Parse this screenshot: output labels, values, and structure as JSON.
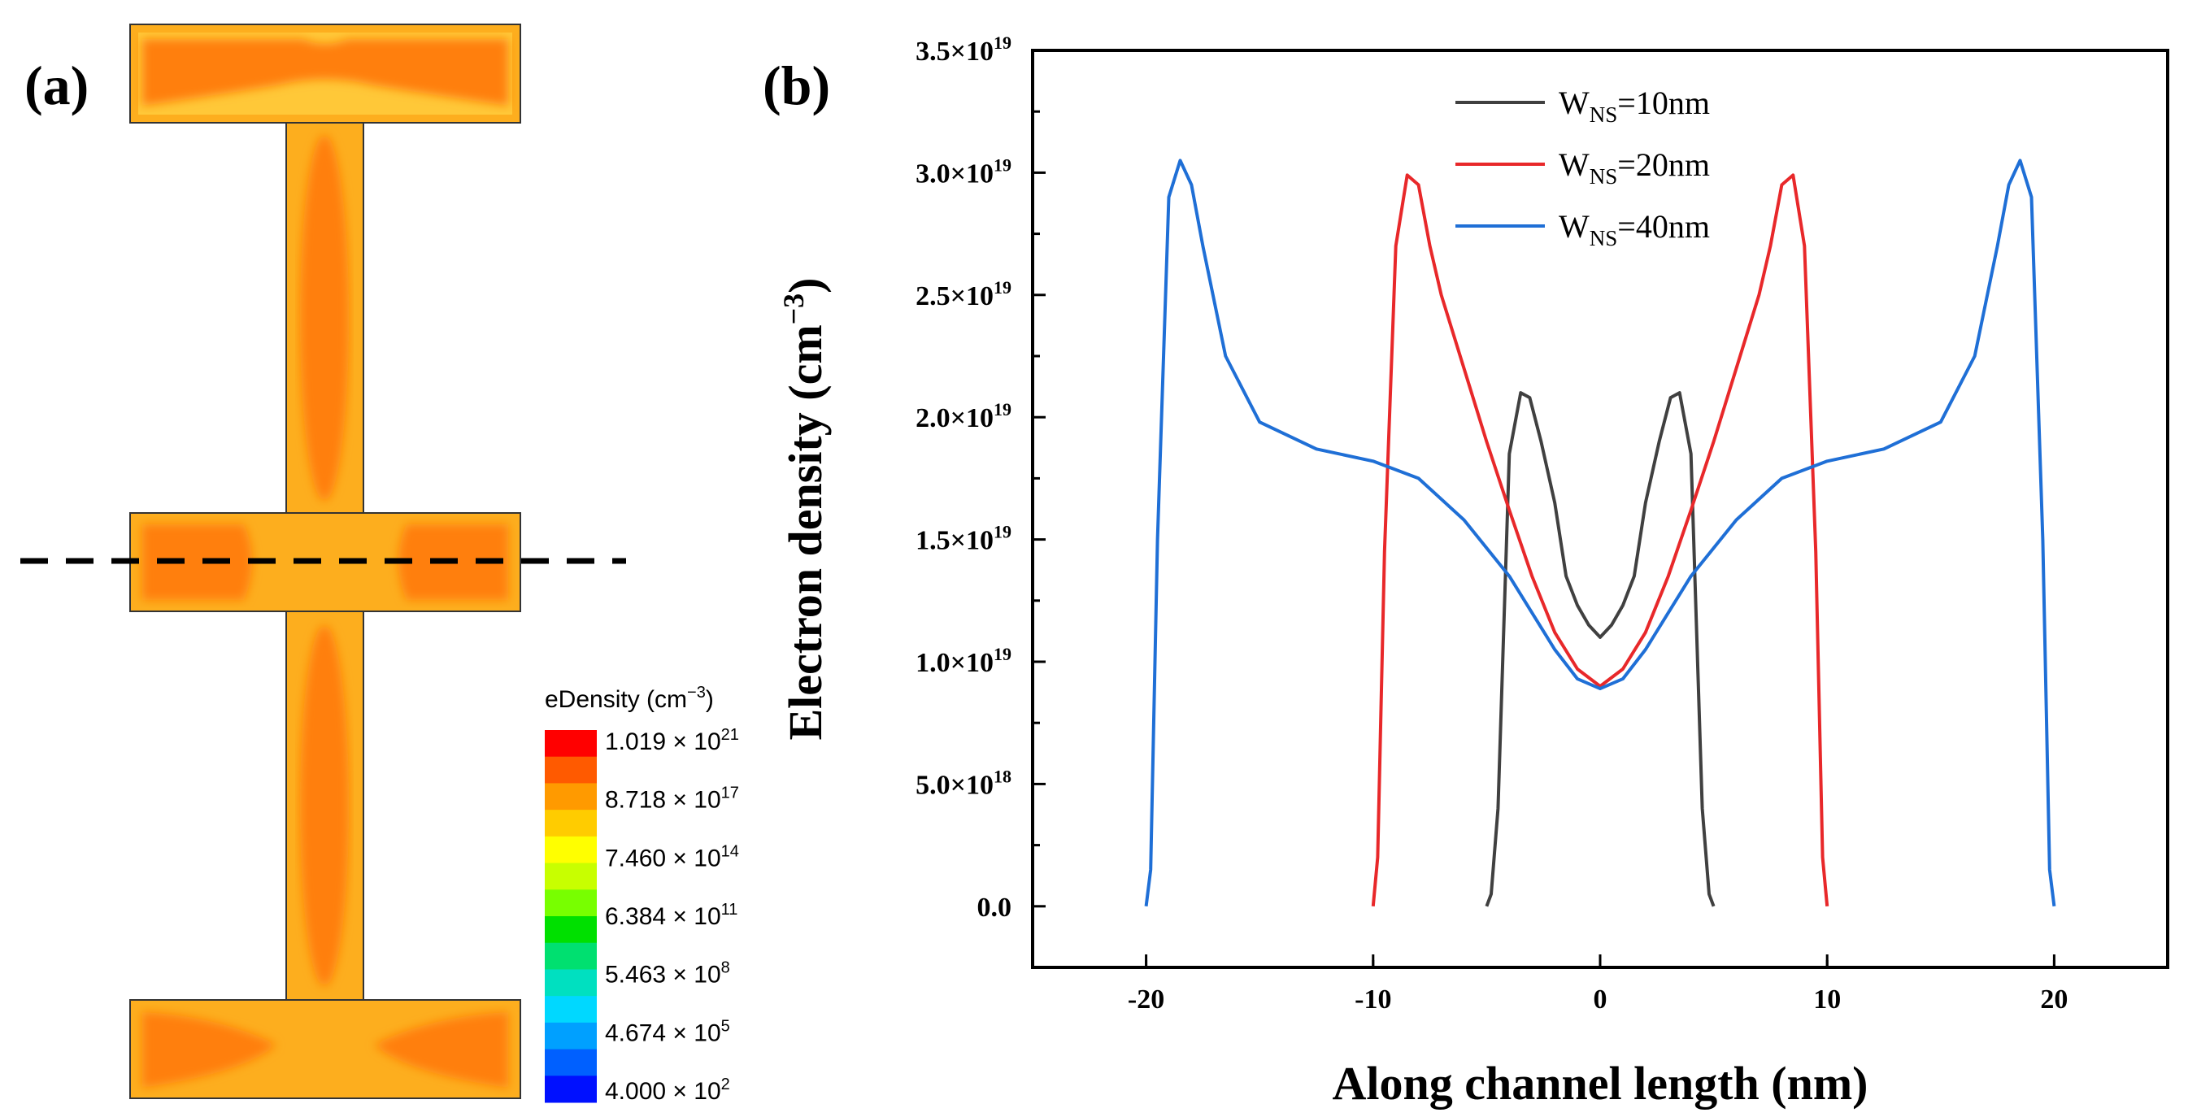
{
  "panel_a": {
    "label": "(a)",
    "colorbar": {
      "title": "eDensity (cm",
      "title_exp": "−3",
      "title_close": ")",
      "entries": [
        {
          "mantissa": "1.019",
          "times": "×",
          "base": "10",
          "exp": "21"
        },
        {
          "mantissa": "8.718",
          "times": "×",
          "base": "10",
          "exp": "17"
        },
        {
          "mantissa": "7.460",
          "times": "×",
          "base": "10",
          "exp": "14"
        },
        {
          "mantissa": "6.384",
          "times": "×",
          "base": "10",
          "exp": "11"
        },
        {
          "mantissa": "5.463",
          "times": "×",
          "base": "10",
          "exp": "8"
        },
        {
          "mantissa": "4.674",
          "times": "×",
          "base": "10",
          "exp": "5"
        },
        {
          "mantissa": "4.000",
          "times": "×",
          "base": "10",
          "exp": "2"
        }
      ],
      "colors": [
        "#ff0000",
        "#ff5a00",
        "#ff9a00",
        "#ffcc00",
        "#ffff00",
        "#c8ff00",
        "#78ff00",
        "#00e000",
        "#00e070",
        "#00e0c0",
        "#00d8ff",
        "#00a0ff",
        "#0060ff",
        "#0010ff"
      ]
    },
    "colors": {
      "outer": "#fdae1e",
      "inner": "#ff7f0e",
      "edge": "#ffc838"
    }
  },
  "panel_b": {
    "label": "(b)",
    "colors": {
      "w10": "#404040",
      "w20": "#e8282a",
      "w40": "#1f6fd6"
    }
  },
  "chart_data": {
    "type": "line",
    "title": "",
    "xlabel": "Along channel length (nm)",
    "ylabel": "Electron density (cm",
    "ylabel_exp": "−3",
    "ylabel_close": ")",
    "xlim": [
      -25,
      25
    ],
    "ylim": [
      -2.5e+18,
      3.5e+19
    ],
    "xticks": [
      -20,
      -10,
      0,
      10,
      20
    ],
    "xtick_labels": [
      "-20",
      "-10",
      "0",
      "10",
      "20"
    ],
    "yticks": [
      0,
      5e+18,
      1e+19,
      1.5e+19,
      2e+19,
      2.5e+19,
      3e+19,
      3.5e+19
    ],
    "ytick_mantissas": [
      "0.0",
      "5.0×10",
      "1.0×10",
      "1.5×10",
      "2.0×10",
      "2.5×10",
      "3.0×10",
      "3.5×10"
    ],
    "ytick_exps": [
      "",
      "18",
      "19",
      "19",
      "19",
      "19",
      "19",
      "19"
    ],
    "legend_position": "top-center",
    "series": [
      {
        "name_main": "W",
        "name_sub": "NS",
        "name_rest": "=10nm",
        "x": [
          -5,
          -4.8,
          -4.5,
          -4,
          -3.5,
          -3.1,
          -2.6,
          -2,
          -1.5,
          -1,
          -0.5,
          0,
          0.5,
          1,
          1.5,
          2,
          2.6,
          3.1,
          3.5,
          4,
          4.5,
          4.8,
          5
        ],
        "y": [
          0,
          5e+17,
          4e+18,
          1.85e+19,
          2.1e+19,
          2.08e+19,
          1.9e+19,
          1.65e+19,
          1.35e+19,
          1.23e+19,
          1.15e+19,
          1.1e+19,
          1.15e+19,
          1.23e+19,
          1.35e+19,
          1.65e+19,
          1.9e+19,
          2.08e+19,
          2.1e+19,
          1.85e+19,
          4e+18,
          5e+17,
          0
        ]
      },
      {
        "name_main": "W",
        "name_sub": "NS",
        "name_rest": "=20nm",
        "x": [
          -10,
          -9.8,
          -9.5,
          -9,
          -8.5,
          -8,
          -7.5,
          -7,
          -6,
          -5,
          -4,
          -3,
          -2,
          -1,
          0,
          1,
          2,
          3,
          4,
          5,
          6,
          7,
          7.5,
          8,
          8.5,
          9,
          9.5,
          9.8,
          10
        ],
        "y": [
          0,
          2e+18,
          1.45e+19,
          2.7e+19,
          2.99e+19,
          2.95e+19,
          2.7e+19,
          2.5e+19,
          2.2e+19,
          1.9e+19,
          1.62e+19,
          1.35e+19,
          1.12e+19,
          9.7e+18,
          9e+18,
          9.7e+18,
          1.12e+19,
          1.35e+19,
          1.62e+19,
          1.9e+19,
          2.2e+19,
          2.5e+19,
          2.7e+19,
          2.95e+19,
          2.99e+19,
          2.7e+19,
          1.45e+19,
          2e+18,
          0
        ]
      },
      {
        "name_main": "W",
        "name_sub": "NS",
        "name_rest": "=40nm",
        "x": [
          -20,
          -19.8,
          -19.5,
          -19,
          -18.5,
          -18,
          -17.5,
          -16.5,
          -15,
          -12.5,
          -10,
          -8,
          -6,
          -4,
          -2,
          -1,
          0,
          1,
          2,
          4,
          6,
          8,
          10,
          12.5,
          15,
          16.5,
          17.5,
          18,
          18.5,
          19,
          19.5,
          19.8,
          20
        ],
        "y": [
          0,
          1.5e+18,
          1.5e+19,
          2.9e+19,
          3.05e+19,
          2.95e+19,
          2.7e+19,
          2.25e+19,
          1.98e+19,
          1.87e+19,
          1.82e+19,
          1.75e+19,
          1.58e+19,
          1.35e+19,
          1.05e+19,
          9.3e+18,
          8.9e+18,
          9.3e+18,
          1.05e+19,
          1.35e+19,
          1.58e+19,
          1.75e+19,
          1.82e+19,
          1.87e+19,
          1.98e+19,
          2.25e+19,
          2.7e+19,
          2.95e+19,
          3.05e+19,
          2.9e+19,
          1.5e+19,
          1.5e+18,
          0
        ]
      }
    ]
  }
}
